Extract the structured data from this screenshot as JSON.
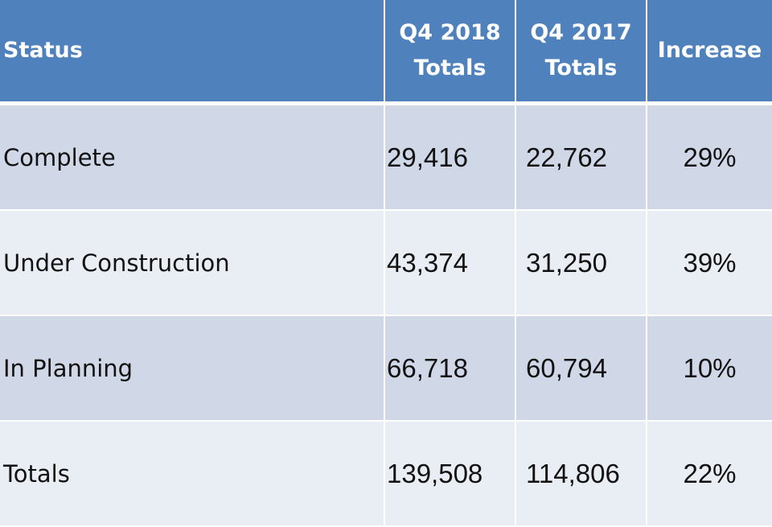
{
  "table": {
    "headers": {
      "status": "Status",
      "q4_2018_line1": "Q4 2018",
      "q4_2018_line2": "Totals",
      "q4_2017_line1": "Q4 2017",
      "q4_2017_line2": "Totals",
      "increase": "Increase"
    },
    "rows": [
      {
        "status": "Complete",
        "q4_2018": "29,416",
        "q4_2017": "22,762",
        "increase": "29%"
      },
      {
        "status": "Under Construction",
        "q4_2018": "43,374",
        "q4_2017": "31,250",
        "increase": "39%"
      },
      {
        "status": "In Planning",
        "q4_2018": "66,718",
        "q4_2017": "60,794",
        "increase": "10%"
      },
      {
        "status": "Totals",
        "q4_2018": "139,508",
        "q4_2017": "114,806",
        "increase": "22%"
      }
    ]
  },
  "colors": {
    "header_bg": "#4f81bd",
    "row_odd_bg": "#d0d8e8",
    "row_even_bg": "#e9edf4",
    "header_text": "#ffffff"
  }
}
